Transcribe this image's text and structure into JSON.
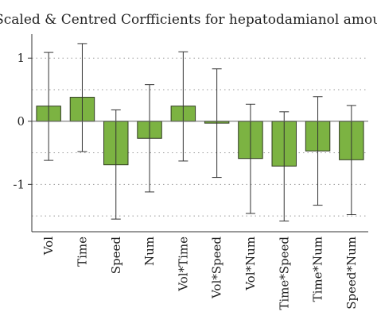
{
  "chart_data": {
    "type": "bar",
    "title": "Scaled & Centred Corfficients for hepatodamianol amount",
    "xlabel": "",
    "ylabel": "",
    "categories": [
      "Vol",
      "Time",
      "Speed",
      "Num",
      "Vol*Time",
      "Vol*Speed",
      "Vol*Num",
      "Time*Speed",
      "Time*Num",
      "Speed*Num"
    ],
    "values": [
      0.24,
      0.38,
      -0.69,
      -0.27,
      0.24,
      -0.03,
      -0.59,
      -0.71,
      -0.47,
      -0.61
    ],
    "error_low": [
      -0.62,
      -0.48,
      -1.55,
      -1.12,
      -0.63,
      -0.89,
      -1.46,
      -1.58,
      -1.33,
      -1.48
    ],
    "error_high": [
      1.09,
      1.23,
      0.18,
      0.58,
      1.1,
      0.83,
      0.27,
      0.15,
      0.39,
      0.25
    ],
    "ylim": [
      -1.75,
      1.38
    ],
    "yticks": [
      -1,
      0,
      1
    ],
    "ytick_labels": [
      "-1",
      "0",
      "1"
    ],
    "gridlines": [
      -1.5,
      -1,
      -0.5,
      0,
      0.5,
      1
    ],
    "grid": true,
    "error_bars": true,
    "bar_color": "#7cb342",
    "bar_edge_color": "#2f3a20",
    "grid_color": "#9a9a9a"
  }
}
